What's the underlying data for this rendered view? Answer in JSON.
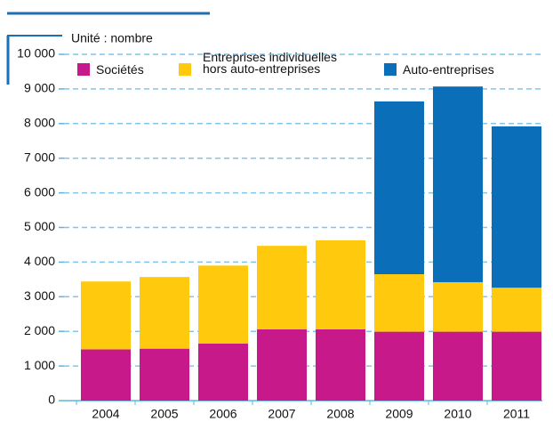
{
  "chart_data": {
    "type": "stacked_bar",
    "unit_label": "Unité : nombre",
    "categories": [
      "2004",
      "2005",
      "2006",
      "2007",
      "2008",
      "2009",
      "2010",
      "2011"
    ],
    "series": [
      {
        "name": "Sociétés",
        "color": "#c8198a",
        "values": [
          1480,
          1500,
          1650,
          2060,
          2060,
          1990,
          1990,
          1990
        ]
      },
      {
        "name": "Entreprises individuelles\nhors auto-entreprises",
        "color": "#ffc90e",
        "values": [
          1960,
          2070,
          2250,
          2410,
          2570,
          1660,
          1430,
          1270
        ]
      },
      {
        "name": "Auto-entreprises",
        "color": "#0a6fb8",
        "values": [
          0,
          0,
          0,
          0,
          0,
          4990,
          5650,
          4660
        ]
      }
    ],
    "ylim": [
      0,
      10000
    ],
    "yticks": [
      0,
      {
        "value": 1000,
        "label": "1 000"
      },
      {
        "value": 2000,
        "label": "2 000"
      },
      {
        "value": 3000,
        "label": "3 000"
      },
      {
        "value": 4000,
        "label": "4 000"
      },
      {
        "value": 5000,
        "label": "5 000"
      },
      {
        "value": 6000,
        "label": "6 000"
      },
      {
        "value": 7000,
        "label": "7 000"
      },
      {
        "value": 8000,
        "label": "8 000"
      },
      {
        "value": 9000,
        "label": "9 000"
      },
      {
        "value": 10000,
        "label": "10 000"
      }
    ],
    "grid": true
  }
}
